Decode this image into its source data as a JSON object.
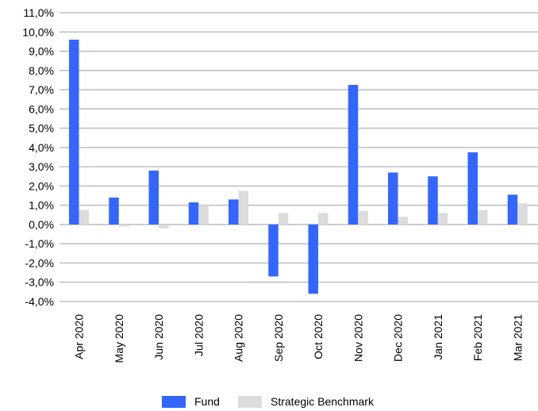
{
  "chart_data": {
    "type": "bar",
    "categories": [
      "Apr 2020",
      "May 2020",
      "Jun 2020",
      "Jul 2020",
      "Aug 2020",
      "Sep 2020",
      "Oct 2020",
      "Nov 2020",
      "Dec 2020",
      "Jan 2021",
      "Feb 2021",
      "Mar 2021"
    ],
    "series": [
      {
        "name": "Fund",
        "color": "#3366FF",
        "values": [
          9.6,
          1.4,
          2.8,
          1.15,
          1.3,
          -2.7,
          -3.6,
          7.25,
          2.7,
          2.5,
          3.75,
          1.55
        ]
      },
      {
        "name": "Strategic Benchmark",
        "color": "#DCDCDC",
        "values": [
          0.75,
          -0.1,
          -0.2,
          1.0,
          1.75,
          0.6,
          0.6,
          0.7,
          0.4,
          0.6,
          0.75,
          1.1
        ]
      }
    ],
    "ylim": [
      -4,
      11
    ],
    "yticks": [
      {
        "value": 11,
        "label": "11,0%"
      },
      {
        "value": 10,
        "label": "10,0%"
      },
      {
        "value": 9,
        "label": "9,0%"
      },
      {
        "value": 8,
        "label": "8,0%"
      },
      {
        "value": 7,
        "label": "7,0%"
      },
      {
        "value": 6,
        "label": "6,0%"
      },
      {
        "value": 5,
        "label": "5,0%"
      },
      {
        "value": 4,
        "label": "4,0%"
      },
      {
        "value": 3,
        "label": "3,0%"
      },
      {
        "value": 2,
        "label": "2,0%"
      },
      {
        "value": 1,
        "label": "1,0%"
      },
      {
        "value": 0,
        "label": "0,0%"
      },
      {
        "value": -1,
        "label": "-1,0%"
      },
      {
        "value": -2,
        "label": "-2,0%"
      },
      {
        "value": -3,
        "label": "-3,0%"
      },
      {
        "value": -4,
        "label": "-4,0%"
      }
    ],
    "title": "",
    "xlabel": "",
    "ylabel": "",
    "grid": true,
    "legend": "bottom-center",
    "gridline_color": "#C0C0C0"
  }
}
